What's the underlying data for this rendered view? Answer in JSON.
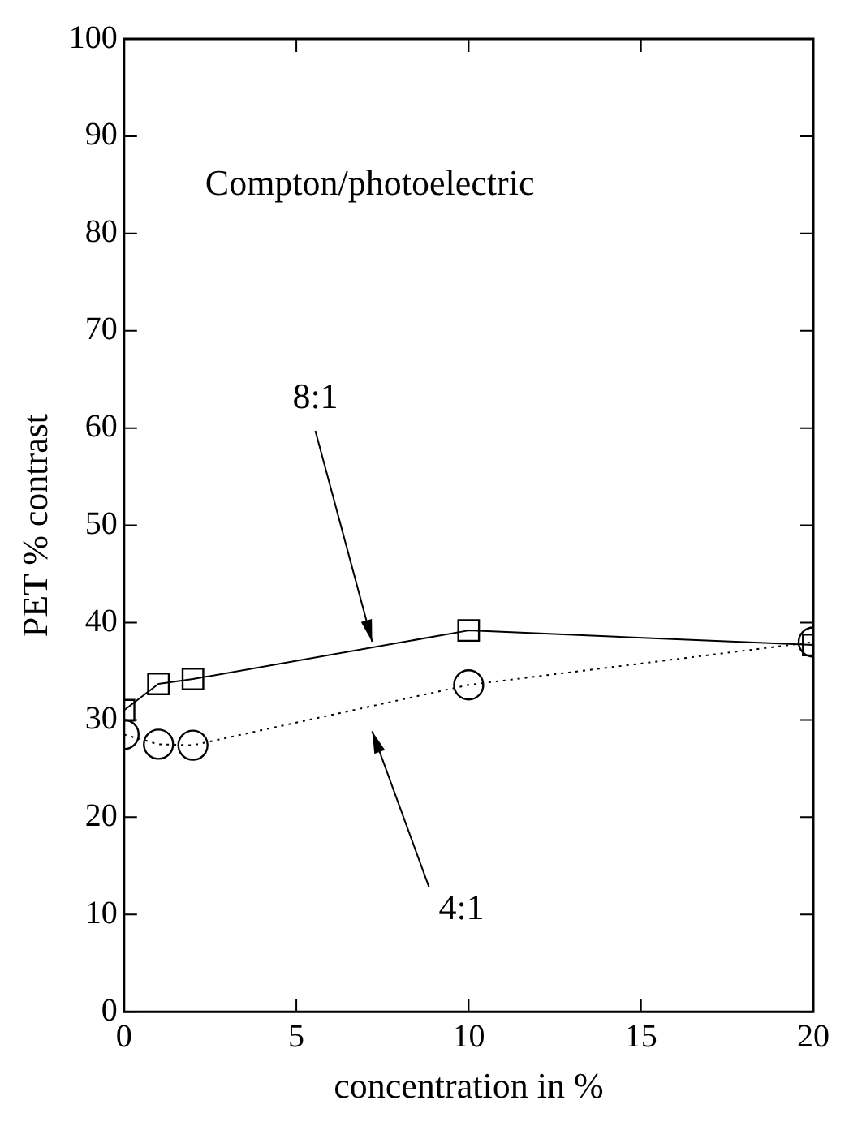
{
  "chart_data": {
    "type": "line",
    "title": "Compton/photoelectric",
    "xlabel": "concentration in %",
    "ylabel": "PET % contrast",
    "xlim": [
      0,
      20
    ],
    "xticks": [
      0,
      5,
      10,
      15,
      20
    ],
    "ylim": [
      0,
      100
    ],
    "yticks": [
      0,
      10,
      20,
      30,
      40,
      50,
      60,
      70,
      80,
      90,
      100
    ],
    "grid": false,
    "legend": false,
    "series": [
      {
        "name": "8:1",
        "color": "#000000",
        "x": [
          0,
          1,
          2,
          10,
          20
        ],
        "values": [
          31,
          33.7,
          34.2,
          39.2,
          37.7
        ],
        "marker": "square",
        "line_style": "solid"
      },
      {
        "name": "4:1",
        "color": "#000000",
        "x": [
          0,
          1,
          2,
          10,
          20
        ],
        "values": [
          28.5,
          27.5,
          27.4,
          33.6,
          38
        ],
        "marker": "circle",
        "line_style": "dotted"
      }
    ]
  }
}
